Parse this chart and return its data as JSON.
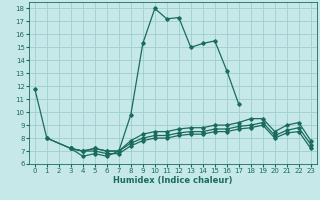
{
  "background_color": "#c6e8e8",
  "grid_color": "#9ecece",
  "line_color": "#1a6b5e",
  "xlabel": "Humidex (Indice chaleur)",
  "xlim": [
    -0.5,
    23.5
  ],
  "ylim": [
    6,
    18.5
  ],
  "yticks": [
    6,
    7,
    8,
    9,
    10,
    11,
    12,
    13,
    14,
    15,
    16,
    17,
    18
  ],
  "xticks": [
    0,
    1,
    2,
    3,
    4,
    5,
    6,
    7,
    8,
    9,
    10,
    11,
    12,
    13,
    14,
    15,
    16,
    17,
    18,
    19,
    20,
    21,
    22,
    23
  ],
  "series": [
    {
      "x": [
        0,
        1,
        3,
        4,
        5,
        6,
        7,
        8,
        9,
        10,
        11,
        12,
        13,
        14,
        15,
        16,
        17
      ],
      "y": [
        11.8,
        8.0,
        7.2,
        6.6,
        6.8,
        6.6,
        7.0,
        9.8,
        15.3,
        18.0,
        17.2,
        17.3,
        15.0,
        15.3,
        15.5,
        13.2,
        10.6
      ]
    },
    {
      "x": [
        1,
        3,
        4,
        5,
        6,
        7,
        8,
        9,
        10,
        11,
        12,
        13,
        14,
        15,
        16,
        17,
        18,
        19,
        20,
        21,
        22,
        23
      ],
      "y": [
        8.0,
        7.2,
        7.0,
        7.2,
        7.0,
        7.0,
        7.8,
        8.3,
        8.5,
        8.5,
        8.7,
        8.8,
        8.8,
        9.0,
        9.0,
        9.2,
        9.5,
        9.5,
        8.5,
        9.0,
        9.2,
        7.8
      ]
    },
    {
      "x": [
        3,
        4,
        5,
        6,
        7,
        8,
        9,
        10,
        11,
        12,
        13,
        14,
        15,
        16,
        17,
        18,
        19,
        20,
        21,
        22,
        23
      ],
      "y": [
        7.2,
        7.0,
        7.2,
        7.0,
        7.0,
        7.6,
        8.0,
        8.2,
        8.2,
        8.4,
        8.5,
        8.5,
        8.7,
        8.7,
        8.9,
        9.0,
        9.2,
        8.2,
        8.6,
        8.8,
        7.5
      ]
    },
    {
      "x": [
        3,
        4,
        5,
        6,
        7,
        8,
        9,
        10,
        11,
        12,
        13,
        14,
        15,
        16,
        17,
        18,
        19,
        20,
        21,
        22,
        23
      ],
      "y": [
        7.2,
        7.0,
        7.0,
        6.8,
        6.8,
        7.4,
        7.8,
        8.0,
        8.0,
        8.2,
        8.3,
        8.3,
        8.5,
        8.5,
        8.7,
        8.8,
        9.0,
        8.0,
        8.4,
        8.5,
        7.2
      ]
    }
  ]
}
